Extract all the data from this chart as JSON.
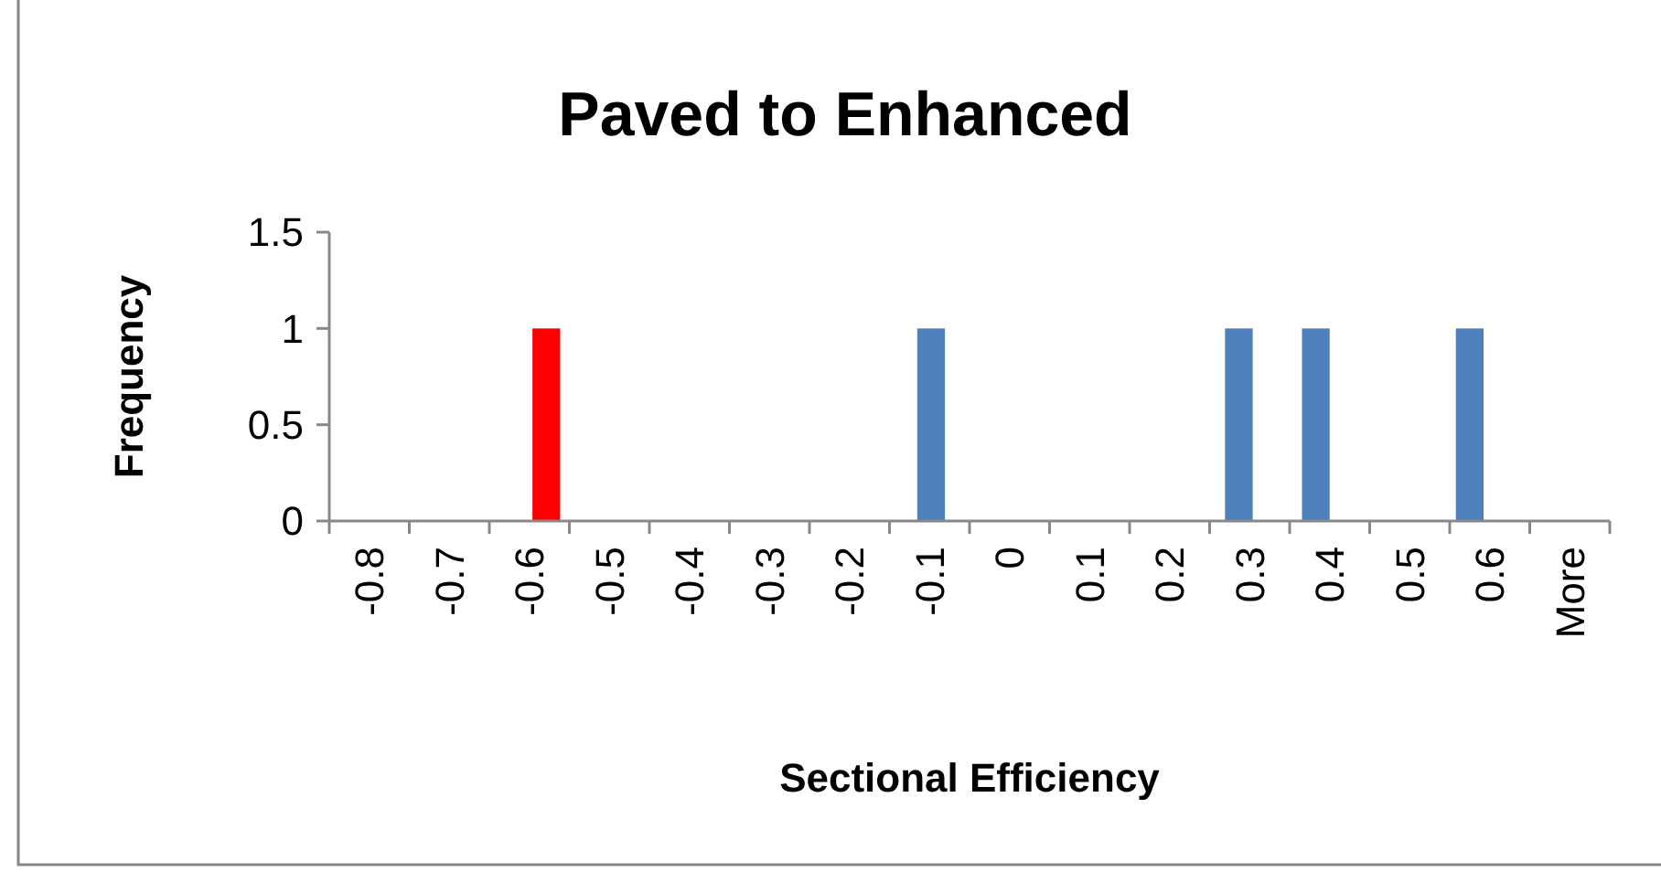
{
  "chart_data": {
    "type": "bar",
    "title": "Paved to Enhanced",
    "xlabel": "Sectional Efficiency",
    "ylabel": "Frequency",
    "categories": [
      "-0.8",
      "-0.7",
      "-0.6",
      "-0.5",
      "-0.4",
      "-0.3",
      "-0.2",
      "-0.1",
      "0",
      "0.1",
      "0.2",
      "0.3",
      "0.4",
      "0.5",
      "0.6",
      "More"
    ],
    "values": [
      0,
      0,
      1,
      0,
      0,
      0,
      0,
      1,
      0,
      0,
      0,
      1,
      1,
      0,
      1,
      0
    ],
    "colors": [
      "#4f81bd",
      "#4f81bd",
      "#ff0000",
      "#4f81bd",
      "#4f81bd",
      "#4f81bd",
      "#4f81bd",
      "#4f81bd",
      "#4f81bd",
      "#4f81bd",
      "#4f81bd",
      "#4f81bd",
      "#4f81bd",
      "#4f81bd",
      "#4f81bd",
      "#4f81bd"
    ],
    "ylim": [
      0,
      1.5
    ],
    "yticks": [
      0,
      0.5,
      1,
      1.5
    ],
    "grid": false
  }
}
